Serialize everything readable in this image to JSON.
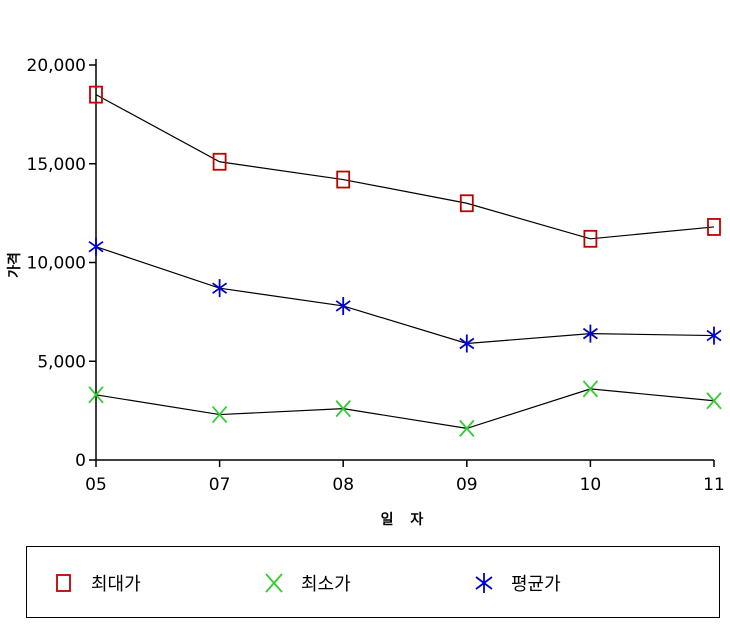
{
  "chart_data": {
    "type": "line",
    "categories": [
      "05",
      "07",
      "08",
      "09",
      "10",
      "11"
    ],
    "xlabel": "일 자",
    "ylabel": "가격",
    "ylim": [
      0,
      20000
    ],
    "yticks": [
      0,
      5000,
      10000,
      15000,
      20000
    ],
    "ytick_labels": [
      "0",
      "5,000",
      "10,000",
      "15,000",
      "20,000"
    ],
    "grid": false,
    "legend_position": "bottom",
    "series": [
      {
        "name": "최대가",
        "marker": "square",
        "color": "#c00000",
        "values": [
          18500,
          15100,
          14200,
          13000,
          11200,
          11800
        ]
      },
      {
        "name": "최소가",
        "marker": "x",
        "color": "#33cc33",
        "values": [
          3300,
          2300,
          2600,
          1600,
          3600,
          3000
        ]
      },
      {
        "name": "평균가",
        "marker": "asterisk",
        "color": "#0000cc",
        "values": [
          10800,
          8700,
          7800,
          5900,
          6400,
          6300
        ]
      }
    ]
  }
}
